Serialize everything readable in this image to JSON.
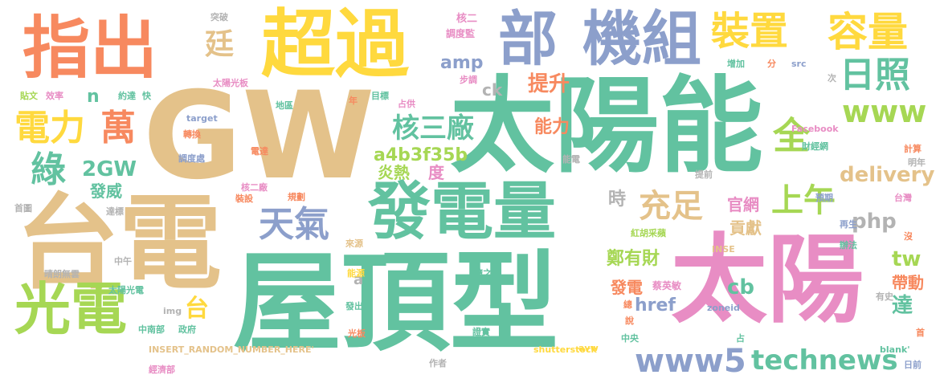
{
  "words": [
    {
      "text": "GW",
      "color": "#e4c28a"
    },
    {
      "text": "太陽能",
      "color": "#62c2a0"
    },
    {
      "text": "屋頂型",
      "color": "#62c2a0"
    },
    {
      "text": "台電",
      "color": "#e4c28a"
    },
    {
      "text": "太陽",
      "color": "#e88dc4"
    },
    {
      "text": "發電量",
      "color": "#62c2a0"
    },
    {
      "text": "超過",
      "color": "#ffd93e"
    },
    {
      "text": "指出",
      "color": "#f7895f"
    },
    {
      "text": "部",
      "color": "#8c9fcb"
    },
    {
      "text": "機組",
      "color": "#8c9fcb"
    },
    {
      "text": "光電",
      "color": "#a6d754"
    },
    {
      "text": "裝置",
      "color": "#ffd93e"
    },
    {
      "text": "容量",
      "color": "#ffd93e"
    },
    {
      "text": "日照",
      "color": "#62c2a0"
    },
    {
      "text": "電力",
      "color": "#ffd93e"
    },
    {
      "text": "萬",
      "color": "#f7895f"
    },
    {
      "text": "綠",
      "color": "#62c2a0"
    },
    {
      "text": "天氣",
      "color": "#8c9fcb"
    },
    {
      "text": "充足",
      "color": "#e4c28a"
    },
    {
      "text": "上午",
      "color": "#a6d754"
    },
    {
      "text": "核三廠",
      "color": "#62c2a0"
    },
    {
      "text": "www",
      "color": "#a6d754"
    },
    {
      "text": "全",
      "color": "#a6d754"
    },
    {
      "text": "www5",
      "color": "#8c9fcb"
    },
    {
      "text": "technews",
      "color": "#62c2a0"
    },
    {
      "text": "台",
      "color": "#ffd93e"
    },
    {
      "text": "2GW",
      "color": "#62c2a0"
    },
    {
      "text": "php",
      "color": "#b3b3b3"
    },
    {
      "text": "delivery",
      "color": "#e4c28a"
    },
    {
      "text": "a4b3f35b",
      "color": "#a6d754"
    },
    {
      "text": "amp",
      "color": "#8c9fcb"
    },
    {
      "text": "提升",
      "color": "#f7895f"
    },
    {
      "text": "tw",
      "color": "#a6d754"
    },
    {
      "text": "cb",
      "color": "#62c2a0"
    },
    {
      "text": "href",
      "color": "#8c9fcb"
    },
    {
      "text": "鄭有財",
      "color": "#a6d754"
    },
    {
      "text": "能力",
      "color": "#f7895f"
    },
    {
      "text": "時",
      "color": "#b3b3b3"
    },
    {
      "text": "官網",
      "color": "#e88dc4"
    },
    {
      "text": "貢獻",
      "color": "#e4c28a"
    },
    {
      "text": "炎熱",
      "color": "#a6d754"
    },
    {
      "text": "度",
      "color": "#e88dc4"
    },
    {
      "text": "發威",
      "color": "#62c2a0"
    },
    {
      "text": "帶動",
      "color": "#f7895f"
    },
    {
      "text": "達",
      "color": "#62c2a0"
    },
    {
      "text": "發電",
      "color": "#f7895f"
    },
    {
      "text": "ck",
      "color": "#b3b3b3"
    },
    {
      "text": "n",
      "color": "#62c2a0"
    },
    {
      "text": "a",
      "color": "#b3b3b3"
    },
    {
      "text": "廷",
      "color": "#e4c28a"
    },
    {
      "text": "蔡英敏",
      "color": "#e88dc4"
    },
    {
      "text": "突破",
      "color": "#b3b3b3"
    },
    {
      "text": "核二",
      "color": "#e88dc4"
    },
    {
      "text": "調度監",
      "color": "#e88dc4"
    },
    {
      "text": "步調",
      "color": "#e88dc4"
    },
    {
      "text": "增加",
      "color": "#62c2a0"
    },
    {
      "text": "分",
      "color": "#f7895f"
    },
    {
      "text": "src",
      "color": "#8c9fcb"
    },
    {
      "text": "次",
      "color": "#b3b3b3"
    },
    {
      "text": "太陽光板",
      "color": "#e88dc4"
    },
    {
      "text": "貼文",
      "color": "#a6d754"
    },
    {
      "text": "效率",
      "color": "#e88dc4"
    },
    {
      "text": "約達",
      "color": "#62c2a0"
    },
    {
      "text": "快",
      "color": "#62c2a0"
    },
    {
      "text": "目標",
      "color": "#62c2a0"
    },
    {
      "text": "占供",
      "color": "#e88dc4"
    },
    {
      "text": "地區",
      "color": "#62c2a0"
    },
    {
      "text": "年",
      "color": "#f7895f"
    },
    {
      "text": "target",
      "color": "#8c9fcb"
    },
    {
      "text": "轉換",
      "color": "#f7895f"
    },
    {
      "text": "電達",
      "color": "#f7895f"
    },
    {
      "text": "調度處",
      "color": "#8c9fcb"
    },
    {
      "text": "能電",
      "color": "#b3b3b3"
    },
    {
      "text": "Facebook",
      "color": "#e88dc4"
    },
    {
      "text": "財經網",
      "color": "#62c2a0"
    },
    {
      "text": "計算",
      "color": "#f7895f"
    },
    {
      "text": "明年",
      "color": "#b3b3b3"
    },
    {
      "text": "提前",
      "color": "#b3b3b3"
    },
    {
      "text": "預期",
      "color": "#8c9fcb"
    },
    {
      "text": "台灣",
      "color": "#e88dc4"
    },
    {
      "text": "核二廠",
      "color": "#e88dc4"
    },
    {
      "text": "規劃",
      "color": "#f7895f"
    },
    {
      "text": "裝設",
      "color": "#f7895f"
    },
    {
      "text": "首圖",
      "color": "#b3b3b3"
    },
    {
      "text": "達標",
      "color": "#b3b3b3"
    },
    {
      "text": "來源",
      "color": "#e4c28a"
    },
    {
      "text": "紅胡采蘋",
      "color": "#a6d754"
    },
    {
      "text": "再生",
      "color": "#8c9fcb"
    },
    {
      "text": "晴朗無雲",
      "color": "#b3b3b3"
    },
    {
      "text": "中午",
      "color": "#b3b3b3"
    },
    {
      "text": "能源",
      "color": "#ffd93e"
    },
    {
      "text": "隨之",
      "color": "#62c2a0"
    },
    {
      "text": "INSE",
      "color": "#e4c28a"
    },
    {
      "text": "辦法",
      "color": "#62c2a0"
    },
    {
      "text": "沒",
      "color": "#f7895f"
    },
    {
      "text": "太陽光電",
      "color": "#62c2a0"
    },
    {
      "text": "發出",
      "color": "#62c2a0"
    },
    {
      "text": "總",
      "color": "#f7895f"
    },
    {
      "text": "zoneid",
      "color": "#8c9fcb"
    },
    {
      "text": "有史",
      "color": "#b3b3b3"
    },
    {
      "text": "img",
      "color": "#b3b3b3"
    },
    {
      "text": "說",
      "color": "#f7895f"
    },
    {
      "text": "光板",
      "color": "#f7895f"
    },
    {
      "text": "中南部",
      "color": "#62c2a0"
    },
    {
      "text": "政府",
      "color": "#62c2a0"
    },
    {
      "text": "證實",
      "color": "#62c2a0"
    },
    {
      "text": "中央",
      "color": "#62c2a0"
    },
    {
      "text": "占",
      "color": "#62c2a0"
    },
    {
      "text": "首",
      "color": "#f7895f"
    },
    {
      "text": "avw",
      "color": "#ffd93e"
    },
    {
      "text": "blank'",
      "color": "#62c2a0"
    },
    {
      "text": "INSERT_RANDOM_NUMBER_HERE'",
      "color": "#e4c28a"
    },
    {
      "text": "作者",
      "color": "#b3b3b3"
    },
    {
      "text": "shutterstock",
      "color": "#ffd93e"
    },
    {
      "text": "經濟部",
      "color": "#e88dc4"
    },
    {
      "text": "日前",
      "color": "#8c9fcb"
    }
  ]
}
